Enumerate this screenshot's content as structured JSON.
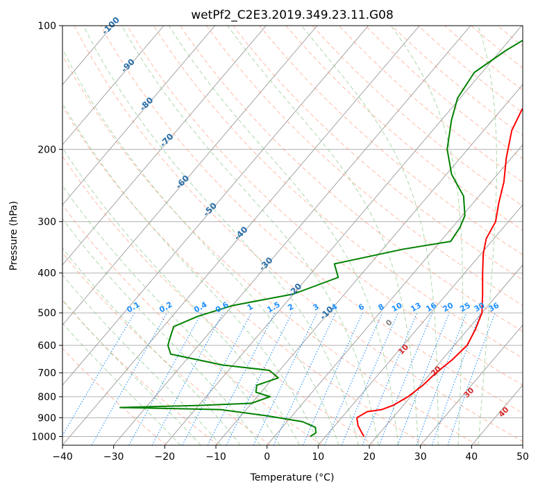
{
  "chart_data": {
    "type": "line",
    "title": "wetPf2_C2E3.2019.349.23.11.G08",
    "xlabel": "Temperature (°C)",
    "ylabel": "Pressure (hPa)",
    "xlim": [
      -40,
      50
    ],
    "ylim": [
      1050,
      100
    ],
    "y_scale": "log",
    "grid": true,
    "x_ticks": [
      -40,
      -30,
      -20,
      -10,
      0,
      10,
      20,
      30,
      40,
      50
    ],
    "y_ticks": [
      100,
      200,
      300,
      400,
      500,
      600,
      700,
      800,
      900,
      1000
    ],
    "skew": "skew-T log-p",
    "series": [
      {
        "color": "#ff0000",
        "points": [
          [
            17.5,
            1000
          ],
          [
            16.0,
            970
          ],
          [
            14.5,
            940
          ],
          [
            13.0,
            900
          ],
          [
            14.0,
            870
          ],
          [
            16.5,
            860
          ],
          [
            18.0,
            840
          ],
          [
            19.5,
            800
          ],
          [
            20.5,
            750
          ],
          [
            21.0,
            700
          ],
          [
            22.0,
            650
          ],
          [
            22.5,
            600
          ],
          [
            21.5,
            550
          ],
          [
            20.0,
            500
          ],
          [
            17.0,
            450
          ],
          [
            13.5,
            400
          ],
          [
            10.5,
            360
          ],
          [
            8.5,
            330
          ],
          [
            7.5,
            300
          ],
          [
            5.0,
            270
          ],
          [
            2.5,
            240
          ],
          [
            -1.0,
            210
          ],
          [
            -4.5,
            180
          ],
          [
            -6.0,
            160
          ],
          [
            -5.5,
            145
          ],
          [
            -3.5,
            130
          ],
          [
            -2.0,
            115
          ],
          [
            -1.5,
            100
          ]
        ]
      },
      {
        "color": "#008000",
        "points": [
          [
            7.0,
            1000
          ],
          [
            7.5,
            980
          ],
          [
            6.5,
            950
          ],
          [
            3.0,
            920
          ],
          [
            -5.0,
            890
          ],
          [
            -15.0,
            860
          ],
          [
            -35.0,
            850
          ],
          [
            -20.0,
            840
          ],
          [
            -10.0,
            830
          ],
          [
            -7.5,
            800
          ],
          [
            -11.0,
            780
          ],
          [
            -12.0,
            750
          ],
          [
            -9.0,
            720
          ],
          [
            -12.0,
            690
          ],
          [
            -22.0,
            670
          ],
          [
            -34.0,
            630
          ],
          [
            -36.0,
            600
          ],
          [
            -37.0,
            570
          ],
          [
            -38.0,
            540
          ],
          [
            -35.0,
            510
          ],
          [
            -30.0,
            480
          ],
          [
            -20.0,
            450
          ],
          [
            -14.0,
            410
          ],
          [
            -17.0,
            380
          ],
          [
            -6.0,
            350
          ],
          [
            2.0,
            335
          ],
          [
            1.5,
            310
          ],
          [
            0.5,
            290
          ],
          [
            -3.0,
            260
          ],
          [
            -9.0,
            230
          ],
          [
            -14.0,
            200
          ],
          [
            -18.0,
            170
          ],
          [
            -20.5,
            150
          ],
          [
            -21.5,
            130
          ],
          [
            -19.0,
            115
          ],
          [
            -15.0,
            100
          ]
        ]
      }
    ],
    "reference_lines": {
      "isotherm_color": "#999999",
      "dry_adiabat_color": "#ff8c69",
      "moist_adiabat_color": "#8fc98f",
      "mixing_ratio_color": "#1e90ff",
      "lcl_line_color": "#d2b48c"
    },
    "annotations": {
      "blue_labels": [
        "-100",
        "-90",
        "-80",
        "-70",
        "-60",
        "-50",
        "-40",
        "-30",
        "-20",
        "-10"
      ],
      "mixing_ratio_labels": [
        "0.1",
        "0.2",
        "0.4",
        "0.6",
        "1",
        "1.5",
        "2",
        "3",
        "4",
        "6",
        "8",
        "10",
        "13",
        "16",
        "20",
        "25",
        "30",
        "36"
      ],
      "red_labels": [
        "10",
        "20",
        "30",
        "40"
      ],
      "grey_label": "0"
    }
  }
}
